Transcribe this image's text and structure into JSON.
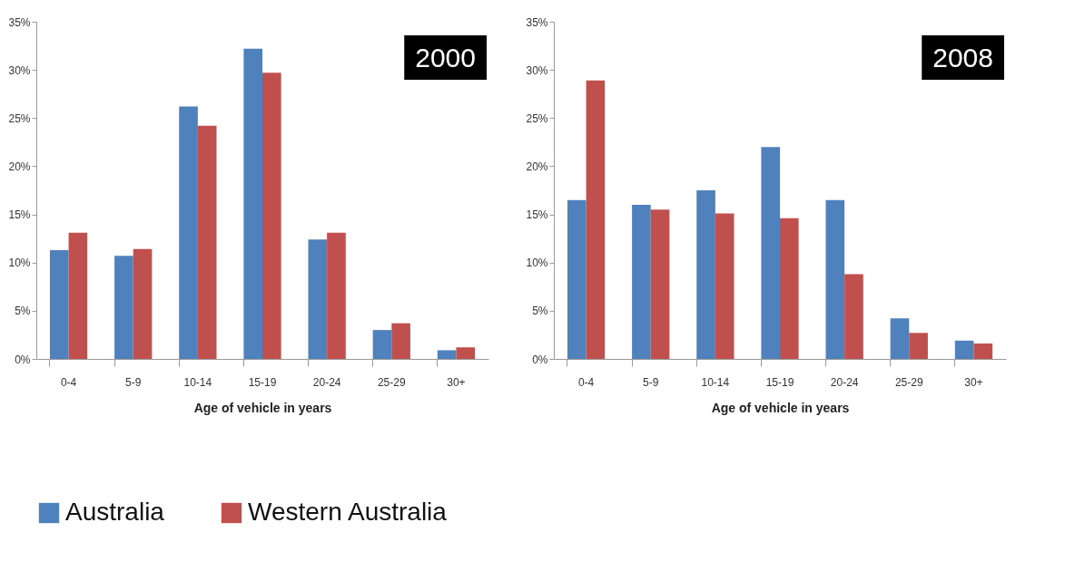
{
  "chart_data": [
    {
      "type": "bar",
      "title": "2000",
      "xlabel": "Age of vehicle in years",
      "categories": [
        "0-4",
        "5-9",
        "10-14",
        "15-19",
        "20-24",
        "25-29",
        "30+"
      ],
      "series": [
        {
          "name": "Australia",
          "color": "#4f81bd",
          "values": [
            11.3,
            10.7,
            26.2,
            32.2,
            12.4,
            3.0,
            0.9
          ]
        },
        {
          "name": "Western Australia",
          "color": "#c0504d",
          "values": [
            13.1,
            11.4,
            24.2,
            29.7,
            13.1,
            3.7,
            1.2
          ]
        }
      ],
      "ylim": [
        0,
        35
      ],
      "yticks": [
        {
          "value": 0,
          "label": "0%"
        },
        {
          "value": 5,
          "label": "5%"
        },
        {
          "value": 10,
          "label": "10%"
        },
        {
          "value": 15,
          "label": "15%"
        },
        {
          "value": 20,
          "label": "20%"
        },
        {
          "value": 25,
          "label": "25%"
        },
        {
          "value": 30,
          "label": "30%"
        },
        {
          "value": 35,
          "label": "35%"
        }
      ],
      "grid": false,
      "legend": "bottom"
    },
    {
      "type": "bar",
      "title": "2008",
      "xlabel": "Age of vehicle in years",
      "categories": [
        "0-4",
        "5-9",
        "10-14",
        "15-19",
        "20-24",
        "25-29",
        "30+"
      ],
      "series": [
        {
          "name": "Australia",
          "color": "#4f81bd",
          "values": [
            16.5,
            16.0,
            17.5,
            22.0,
            16.5,
            4.2,
            1.9
          ]
        },
        {
          "name": "Western Australia",
          "color": "#c0504d",
          "values": [
            28.9,
            15.5,
            15.1,
            14.6,
            8.8,
            2.7,
            1.6
          ]
        }
      ],
      "ylim": [
        0,
        35
      ],
      "yticks": [
        {
          "value": 0,
          "label": "0%"
        },
        {
          "value": 5,
          "label": "5%"
        },
        {
          "value": 10,
          "label": "10%"
        },
        {
          "value": 15,
          "label": "15%"
        },
        {
          "value": 20,
          "label": "20%"
        },
        {
          "value": 25,
          "label": "25%"
        },
        {
          "value": 30,
          "label": "30%"
        },
        {
          "value": 35,
          "label": "35%"
        }
      ],
      "grid": false,
      "legend": "bottom"
    }
  ]
}
